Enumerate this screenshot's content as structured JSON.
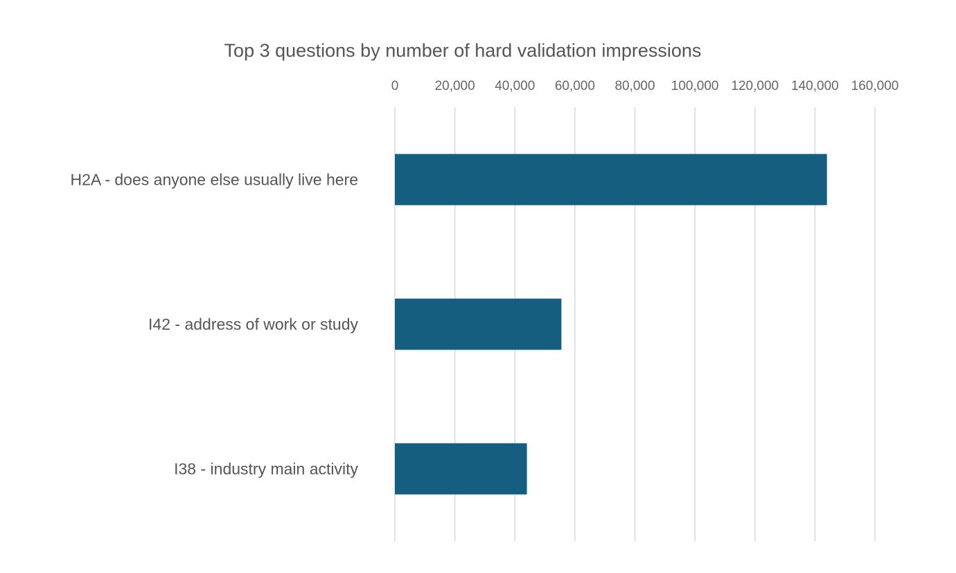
{
  "chart_data": {
    "type": "bar",
    "orientation": "horizontal",
    "title": "Top 3 questions by number of hard validation impressions",
    "xlabel": "",
    "ylabel": "",
    "categories": [
      "H2A - does anyone else usually live here",
      "I42 - address of work or study",
      "I38 - industry main activity"
    ],
    "values": [
      144000,
      55500,
      44000
    ],
    "xlim": [
      0,
      160000
    ],
    "xticks": [
      0,
      20000,
      40000,
      60000,
      80000,
      100000,
      120000,
      140000,
      160000
    ],
    "tick_labels": [
      "0",
      "20,000",
      "40,000",
      "60,000",
      "80,000",
      "100,000",
      "120,000",
      "140,000",
      "160,000"
    ],
    "x_axis_position": "top",
    "grid": true,
    "legend": "none",
    "colors": {
      "bar": "#165e80",
      "grid": "#d9d9d9",
      "text": "#555555"
    }
  }
}
